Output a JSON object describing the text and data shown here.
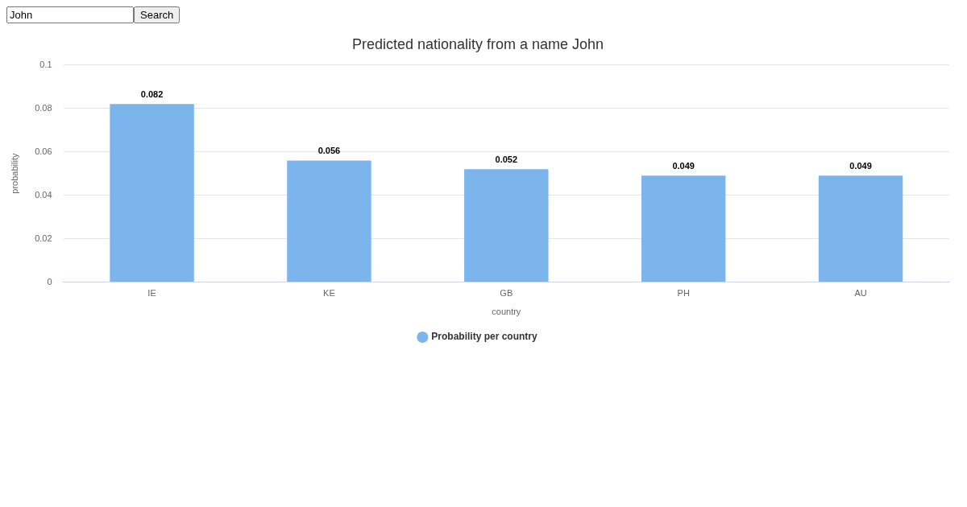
{
  "chart_data": {
    "type": "bar",
    "title": "Predicted nationality from a name John",
    "xlabel": "country",
    "ylabel": "probability",
    "categories": [
      "IE",
      "KE",
      "GB",
      "PH",
      "AU"
    ],
    "series": [
      {
        "name": "Probability per country",
        "color": "#7cb5ec",
        "values": [
          0.082,
          0.056,
          0.052,
          0.049,
          0.049
        ]
      }
    ],
    "ylim": [
      0,
      0.1
    ],
    "yticks": [
      0,
      0.02,
      0.04,
      0.06,
      0.08,
      0.1
    ],
    "grid": "y",
    "legend": "bottom",
    "data_labels": true,
    "annotations": [
      "John",
      "Search"
    ]
  }
}
